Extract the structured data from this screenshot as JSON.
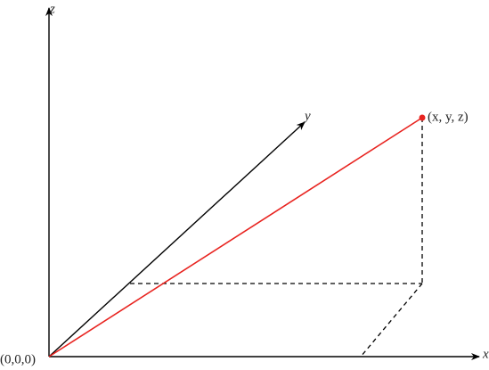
{
  "axes": {
    "z": "z",
    "y": "y",
    "x": "x"
  },
  "origin": "(0,0,0)",
  "point": "(x, y, z)"
}
